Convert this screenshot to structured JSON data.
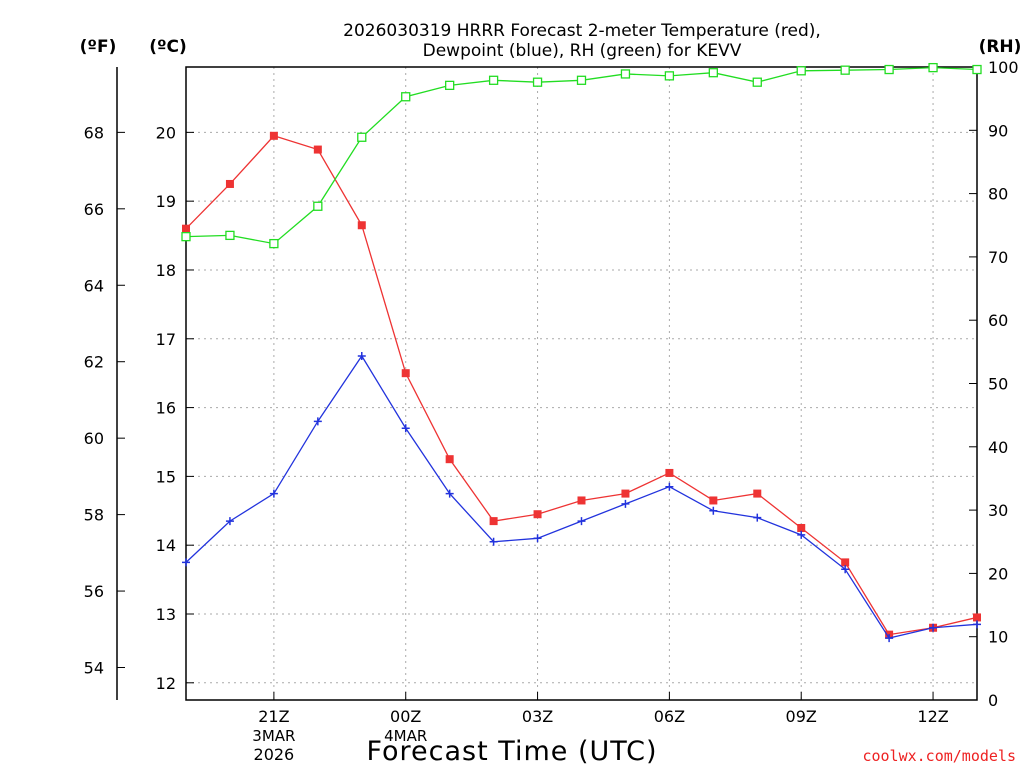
{
  "chart_data": {
    "type": "line",
    "title_line1": "2026030319 HRRR Forecast 2-meter Temperature (red),",
    "title_line2": "Dewpoint (blue), RH (green) for KEVV",
    "xlabel": "Forecast Time (UTC)",
    "credit": "coolwx.com/models",
    "unit_f": "(ºF)",
    "unit_c": "(ºC)",
    "unit_rh": "(RH)",
    "hours": [
      19,
      20,
      21,
      22,
      23,
      24,
      25,
      26,
      27,
      28,
      29,
      30,
      31,
      32,
      33,
      34,
      35,
      36,
      37
    ],
    "xlim": [
      19,
      37
    ],
    "x_ticks": [
      {
        "hour": 21,
        "label": "21Z",
        "sub1": "3MAR",
        "sub2": "2026"
      },
      {
        "hour": 24,
        "label": "00Z",
        "sub1": "4MAR",
        "sub2": ""
      },
      {
        "hour": 27,
        "label": "03Z",
        "sub1": "",
        "sub2": ""
      },
      {
        "hour": 30,
        "label": "06Z",
        "sub1": "",
        "sub2": ""
      },
      {
        "hour": 33,
        "label": "09Z",
        "sub1": "",
        "sub2": ""
      },
      {
        "hour": 36,
        "label": "12Z",
        "sub1": "",
        "sub2": ""
      }
    ],
    "c_axis": {
      "ylim": [
        11.75,
        20.95
      ],
      "ticks": [
        "12",
        "13",
        "14",
        "15",
        "16",
        "17",
        "18",
        "19",
        "20"
      ]
    },
    "f_axis": {
      "ticks": [
        "54",
        "56",
        "58",
        "60",
        "62",
        "64",
        "66",
        "68"
      ]
    },
    "rh_axis": {
      "ylim": [
        0,
        100
      ],
      "ticks": [
        "0",
        "10",
        "20",
        "30",
        "40",
        "50",
        "60",
        "70",
        "80",
        "90",
        "100"
      ]
    },
    "series": [
      {
        "name": "Temperature",
        "axis": "c",
        "color": "#ee3333",
        "marker": "filled-square",
        "values": [
          18.6,
          19.25,
          19.95,
          19.75,
          18.65,
          16.5,
          15.25,
          14.35,
          14.45,
          14.65,
          14.75,
          15.05,
          14.65,
          14.75,
          14.25,
          13.75,
          12.7,
          12.8,
          12.95
        ]
      },
      {
        "name": "Dewpoint",
        "axis": "c",
        "color": "#2233dd",
        "marker": "plus",
        "values": [
          13.75,
          14.35,
          14.75,
          15.8,
          16.75,
          15.7,
          14.75,
          14.05,
          14.1,
          14.35,
          14.6,
          14.85,
          14.5,
          14.4,
          14.15,
          13.65,
          12.65,
          12.8,
          12.85
        ]
      },
      {
        "name": "RH",
        "axis": "rh",
        "color": "#22dd22",
        "marker": "open-square",
        "values": [
          73.2,
          73.4,
          72.1,
          78.0,
          88.9,
          95.3,
          97.1,
          97.9,
          97.6,
          97.9,
          98.9,
          98.6,
          99.1,
          97.6,
          99.4,
          99.5,
          99.6,
          99.9,
          99.6
        ]
      }
    ]
  }
}
